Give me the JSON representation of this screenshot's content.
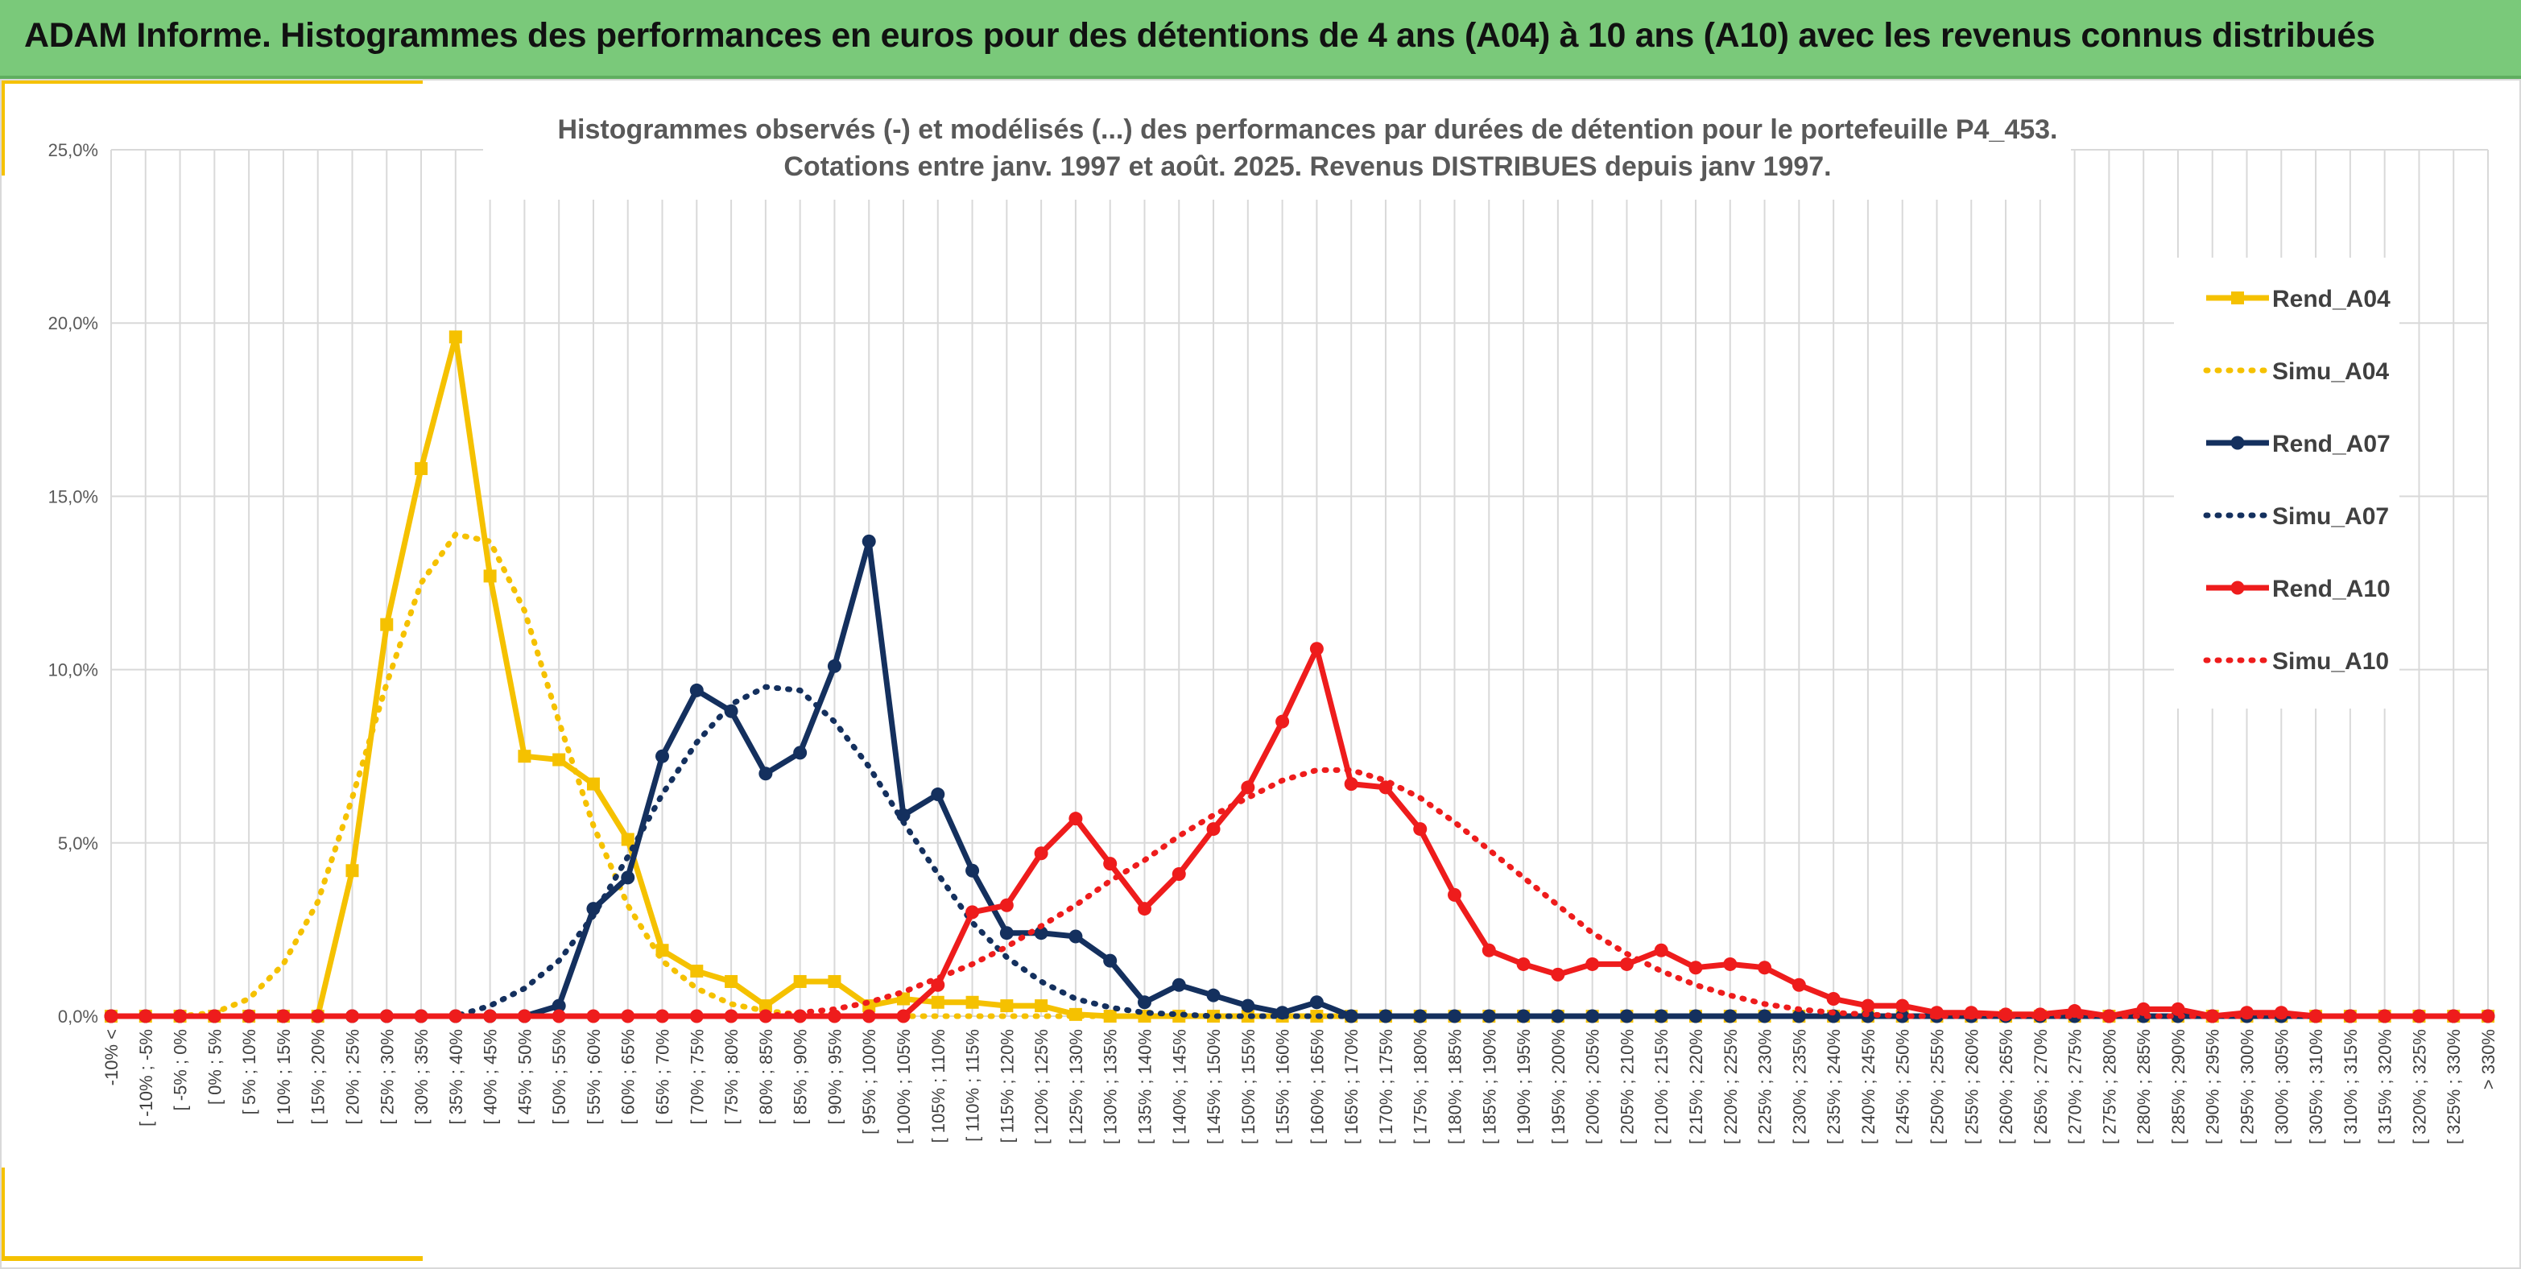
{
  "banner": {
    "title": "ADAM Informe. Histogrammes des performances en euros pour des détentions de 4 ans (A04) à 10 ans (A10) avec les revenus connus distribués"
  },
  "colors": {
    "banner_bg": "#7ac97a",
    "accent_gold": "#f5c100",
    "A04": "#f5c100",
    "A07": "#14305e",
    "A10": "#ee1c1c"
  },
  "chart_data": {
    "type": "line",
    "title": [
      "Histogrammes observés (-) et modélisés (...) des performances par durées de détention pour le portefeuille P4_453.",
      "Cotations entre janv. 1997 et août. 2025. Revenus DISTRIBUES depuis janv 1997."
    ],
    "xlabel": "",
    "ylabel": "",
    "ylim": [
      0,
      25
    ],
    "yticks": [
      "0,0%",
      "5,0%",
      "10,0%",
      "15,0%",
      "20,0%",
      "25,0%"
    ],
    "grid": true,
    "legend_position": "right",
    "categories": [
      "-10% <",
      "[ -10% ; -5%",
      "[ -5% ; 0%",
      "[ 0% ; 5%",
      "[ 5% ; 10%",
      "[ 10% ; 15%",
      "[ 15% ; 20%",
      "[ 20% ; 25%",
      "[ 25% ; 30%",
      "[ 30% ; 35%",
      "[ 35% ; 40%",
      "[ 40% ; 45%",
      "[ 45% ; 50%",
      "[ 50% ; 55%",
      "[ 55% ; 60%",
      "[ 60% ; 65%",
      "[ 65% ; 70%",
      "[ 70% ; 75%",
      "[ 75% ; 80%",
      "[ 80% ; 85%",
      "[ 85% ; 90%",
      "[ 90% ; 95%",
      "[ 95% ; 100%",
      "[ 100% ; 105%",
      "[ 105% ; 110%",
      "[ 110% ; 115%",
      "[ 115% ; 120%",
      "[ 120% ; 125%",
      "[ 125% ; 130%",
      "[ 130% ; 135%",
      "[ 135% ; 140%",
      "[ 140% ; 145%",
      "[ 145% ; 150%",
      "[ 150% ; 155%",
      "[ 155% ; 160%",
      "[ 160% ; 165%",
      "[ 165% ; 170%",
      "[ 170% ; 175%",
      "[ 175% ; 180%",
      "[ 180% ; 185%",
      "[ 185% ; 190%",
      "[ 190% ; 195%",
      "[ 195% ; 200%",
      "[ 200% ; 205%",
      "[ 205% ; 210%",
      "[ 210% ; 215%",
      "[ 215% ; 220%",
      "[ 220% ; 225%",
      "[ 225% ; 230%",
      "[ 230% ; 235%",
      "[ 235% ; 240%",
      "[ 240% ; 245%",
      "[ 245% ; 250%",
      "[ 250% ; 255%",
      "[ 255% ; 260%",
      "[ 260% ; 265%",
      "[ 265% ; 270%",
      "[ 270% ; 275%",
      "[ 275% ; 280%",
      "[ 280% ; 285%",
      "[ 285% ; 290%",
      "[ 290% ; 295%",
      "[ 295% ; 300%",
      "[ 300% ; 305%",
      "[ 305% ; 310%",
      "[ 310% ; 315%",
      "[ 315% ; 320%",
      "[ 320% ; 325%",
      "[ 325% ; 330%",
      "> 330%"
    ],
    "series": [
      {
        "name": "Rend_A04",
        "style": "solid",
        "marker": "square",
        "color": "#f5c100",
        "values": [
          0,
          0,
          0,
          0,
          0,
          0,
          0,
          4.2,
          11.3,
          15.8,
          19.6,
          12.7,
          7.5,
          7.4,
          6.7,
          5.1,
          1.9,
          1.3,
          1.0,
          0.3,
          1.0,
          1.0,
          0.3,
          0.5,
          0.4,
          0.4,
          0.3,
          0.3,
          0.05,
          0,
          0,
          0,
          0,
          0,
          0,
          0,
          0,
          0,
          0,
          0,
          0,
          0,
          0,
          0,
          0,
          0,
          0,
          0,
          0,
          0,
          0,
          0,
          0,
          0,
          0,
          0,
          0,
          0,
          0,
          0,
          0,
          0,
          0,
          0,
          0,
          0,
          0,
          0,
          0,
          0
        ]
      },
      {
        "name": "Simu_A04",
        "style": "dotted",
        "color": "#f5c100",
        "values": [
          0,
          0,
          0,
          0.1,
          0.5,
          1.5,
          3.3,
          6.3,
          9.6,
          12.5,
          13.9,
          13.7,
          11.7,
          8.5,
          5.5,
          3.2,
          1.6,
          0.8,
          0.35,
          0.15,
          0.05,
          0,
          0,
          0,
          0,
          0,
          0,
          0,
          0,
          0,
          0,
          0,
          0,
          0,
          0,
          0,
          0,
          0,
          0,
          0,
          0,
          0,
          0,
          0,
          0,
          0,
          0,
          0,
          0,
          0,
          0,
          0,
          0,
          0,
          0,
          0,
          0,
          0,
          0,
          0,
          0,
          0,
          0,
          0,
          0,
          0,
          0,
          0,
          0,
          0
        ]
      },
      {
        "name": "Rend_A07",
        "style": "solid",
        "marker": "circle",
        "color": "#14305e",
        "values": [
          0,
          0,
          0,
          0,
          0,
          0,
          0,
          0,
          0,
          0,
          0,
          0,
          0,
          0.3,
          3.1,
          4.0,
          7.5,
          9.4,
          8.8,
          7.0,
          7.6,
          10.1,
          13.7,
          5.8,
          6.4,
          4.2,
          2.4,
          2.4,
          2.3,
          1.6,
          0.4,
          0.9,
          0.6,
          0.3,
          0.1,
          0.4,
          0,
          0,
          0,
          0,
          0,
          0,
          0,
          0,
          0,
          0,
          0,
          0,
          0,
          0,
          0,
          0,
          0,
          0,
          0,
          0,
          0,
          0,
          0,
          0,
          0,
          0,
          0,
          0,
          0,
          0,
          0,
          0,
          0,
          0
        ]
      },
      {
        "name": "Simu_A07",
        "style": "dotted",
        "color": "#14305e",
        "values": [
          0,
          0,
          0,
          0,
          0,
          0,
          0,
          0,
          0,
          0,
          0,
          0.3,
          0.8,
          1.6,
          2.9,
          4.6,
          6.4,
          7.9,
          9.0,
          9.5,
          9.4,
          8.5,
          7.2,
          5.6,
          4.1,
          2.7,
          1.7,
          1.0,
          0.5,
          0.25,
          0.1,
          0.05,
          0,
          0,
          0,
          0,
          0,
          0,
          0,
          0,
          0,
          0,
          0,
          0,
          0,
          0,
          0,
          0,
          0,
          0,
          0,
          0,
          0,
          0,
          0,
          0,
          0,
          0,
          0,
          0,
          0,
          0,
          0,
          0,
          0,
          0,
          0,
          0,
          0,
          0
        ]
      },
      {
        "name": "Rend_A10",
        "style": "solid",
        "marker": "circle",
        "color": "#ee1c1c",
        "values": [
          0,
          0,
          0,
          0,
          0,
          0,
          0,
          0,
          0,
          0,
          0,
          0,
          0,
          0,
          0,
          0,
          0,
          0,
          0,
          0,
          0,
          0,
          0,
          0,
          0.9,
          3.0,
          3.2,
          4.7,
          5.7,
          4.4,
          3.1,
          4.1,
          5.4,
          6.6,
          8.5,
          10.6,
          6.7,
          6.6,
          5.4,
          3.5,
          1.9,
          1.5,
          1.2,
          1.5,
          1.5,
          1.9,
          1.4,
          1.5,
          1.4,
          0.9,
          0.5,
          0.3,
          0.3,
          0.1,
          0.1,
          0.05,
          0.05,
          0.15,
          0,
          0.2,
          0.2,
          0,
          0.1,
          0.1,
          0,
          0,
          0,
          0,
          0,
          0
        ]
      },
      {
        "name": "Simu_A10",
        "style": "dotted",
        "color": "#ee1c1c",
        "values": [
          0,
          0,
          0,
          0,
          0,
          0,
          0,
          0,
          0,
          0,
          0,
          0,
          0,
          0,
          0,
          0,
          0,
          0,
          0,
          0,
          0.1,
          0.2,
          0.4,
          0.7,
          1.1,
          1.5,
          2.0,
          2.6,
          3.2,
          3.9,
          4.5,
          5.2,
          5.8,
          6.3,
          6.8,
          7.1,
          7.1,
          6.8,
          6.3,
          5.6,
          4.8,
          4.0,
          3.2,
          2.4,
          1.8,
          1.3,
          0.9,
          0.6,
          0.35,
          0.2,
          0.1,
          0.05,
          0,
          0,
          0,
          0,
          0,
          0,
          0,
          0,
          0,
          0,
          0,
          0,
          0,
          0,
          0,
          0,
          0,
          0
        ]
      }
    ]
  }
}
